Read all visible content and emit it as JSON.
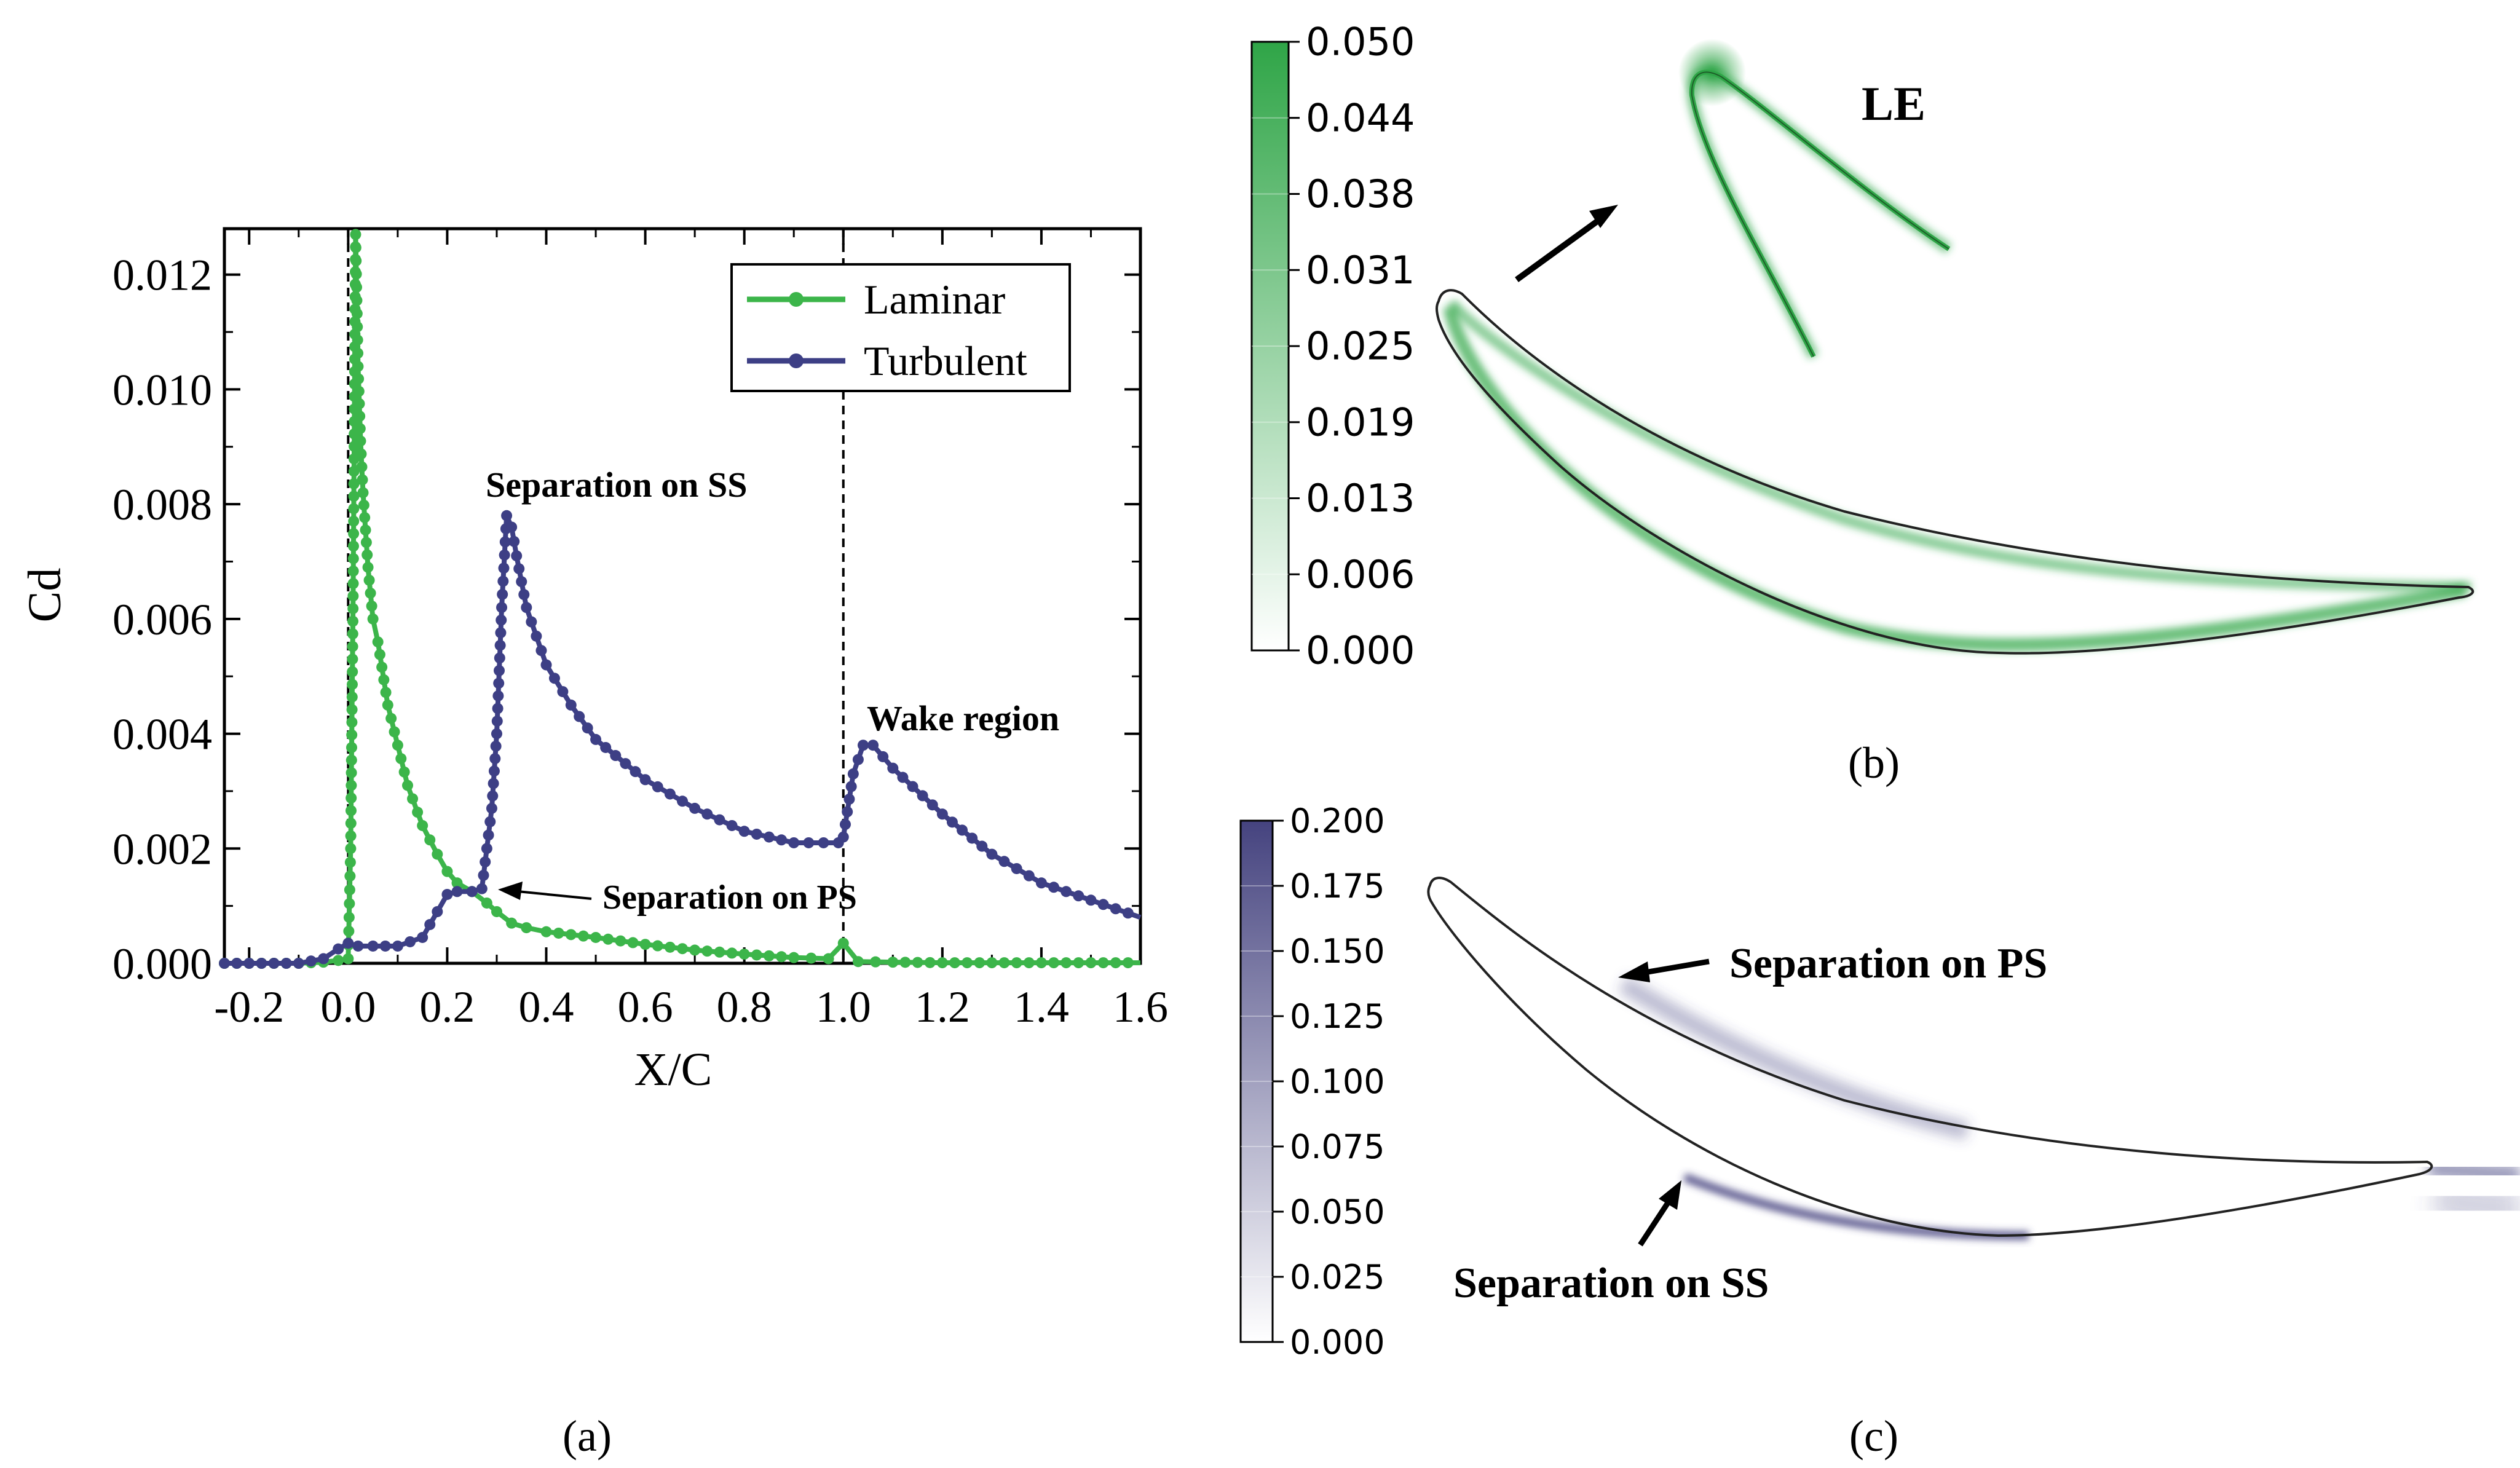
{
  "colors": {
    "laminar": "#3cb54a",
    "turbulent": "#3d3f85",
    "axis": "#000000",
    "grid_dash": "#000000",
    "green_max": "#2fa547",
    "purple_max": "#45437f"
  },
  "panel_labels": {
    "a": "(a)",
    "b": "(b)",
    "c": "(c)"
  },
  "chart_data": [
    {
      "type": "line",
      "panel": "a",
      "xlabel": "X/C",
      "ylabel": "Cd",
      "xlim": [
        -0.25,
        1.6
      ],
      "ylim": [
        0,
        0.0128
      ],
      "x_ticks": [
        -0.2,
        0.0,
        0.2,
        0.4,
        0.6,
        0.8,
        1.0,
        1.2,
        1.4,
        1.6
      ],
      "x_tick_labels": [
        "-0.2",
        "0.0",
        "0.2",
        "0.4",
        "0.6",
        "0.8",
        "1.0",
        "1.2",
        "1.4",
        "1.6"
      ],
      "y_ticks": [
        0,
        0.002,
        0.004,
        0.006,
        0.008,
        0.01,
        0.012
      ],
      "y_tick_labels": [
        "0.000",
        "0.002",
        "0.004",
        "0.006",
        "0.008",
        "0.010",
        "0.012"
      ],
      "vlines": [
        0.0,
        1.0
      ],
      "legend": {
        "position": "top-right",
        "entries": [
          "Laminar",
          "Turbulent"
        ]
      },
      "series": [
        {
          "name": "Laminar",
          "color": "#3cb54a",
          "x": [
            -0.25,
            -0.1,
            -0.05,
            -0.02,
            0.0,
            0.005,
            0.01,
            0.015,
            0.02,
            0.025,
            0.03,
            0.04,
            0.05,
            0.06,
            0.08,
            0.1,
            0.12,
            0.15,
            0.18,
            0.2,
            0.22,
            0.25,
            0.28,
            0.3,
            0.33,
            0.36,
            0.4,
            0.5,
            0.6,
            0.7,
            0.8,
            0.9,
            0.97,
            1.0,
            1.03,
            1.1,
            1.2,
            1.4,
            1.6
          ],
          "y": [
            0,
            0,
            2e-05,
            5e-05,
            8e-05,
            0.002,
            0.0064,
            0.0127,
            0.0104,
            0.0091,
            0.0082,
            0.0069,
            0.006,
            0.0056,
            0.0045,
            0.0038,
            0.0031,
            0.0024,
            0.0019,
            0.0016,
            0.0014,
            0.00125,
            0.00105,
            0.0009,
            0.0007,
            0.00062,
            0.00055,
            0.00045,
            0.00033,
            0.00023,
            0.00016,
            0.0001,
            8e-05,
            0.00035,
            3e-05,
            2e-05,
            1e-05,
            1e-05,
            1e-05
          ]
        },
        {
          "name": "Turbulent",
          "color": "#3d3f85",
          "x": [
            -0.25,
            -0.1,
            -0.05,
            -0.02,
            0.0,
            0.02,
            0.05,
            0.1,
            0.15,
            0.18,
            0.2,
            0.22,
            0.25,
            0.27,
            0.29,
            0.3,
            0.31,
            0.32,
            0.33,
            0.34,
            0.36,
            0.4,
            0.45,
            0.5,
            0.6,
            0.7,
            0.8,
            0.9,
            0.99,
            1.0,
            1.02,
            1.04,
            1.06,
            1.1,
            1.2,
            1.3,
            1.4,
            1.5,
            1.6
          ],
          "y": [
            0,
            0,
            8e-05,
            0.00025,
            0.00035,
            0.0003,
            0.0003,
            0.0003,
            0.00045,
            0.0009,
            0.0012,
            0.00125,
            0.00125,
            0.0013,
            0.0027,
            0.004,
            0.0062,
            0.0078,
            0.0076,
            0.0071,
            0.0062,
            0.0052,
            0.0045,
            0.0039,
            0.0032,
            0.0027,
            0.0023,
            0.0021,
            0.0021,
            0.0022,
            0.0033,
            0.0038,
            0.0038,
            0.0034,
            0.0026,
            0.0019,
            0.0014,
            0.0011,
            0.0008
          ]
        }
      ],
      "annotations": {
        "sep_ss": "Separation on SS",
        "sep_ps": "Separation on PS",
        "wake": "Wake region"
      }
    },
    {
      "type": "heatmap",
      "panel": "b",
      "colorbar_ticks": [
        "0.050",
        "0.044",
        "0.038",
        "0.031",
        "0.025",
        "0.019",
        "0.013",
        "0.006",
        "0.000"
      ],
      "annotations": {
        "le": "LE"
      }
    },
    {
      "type": "heatmap",
      "panel": "c",
      "colorbar_ticks": [
        "0.200",
        "0.175",
        "0.150",
        "0.125",
        "0.100",
        "0.075",
        "0.050",
        "0.025",
        "0.000"
      ],
      "annotations": {
        "sep_ps": "Separation on PS",
        "sep_ss": "Separation on SS"
      }
    }
  ]
}
